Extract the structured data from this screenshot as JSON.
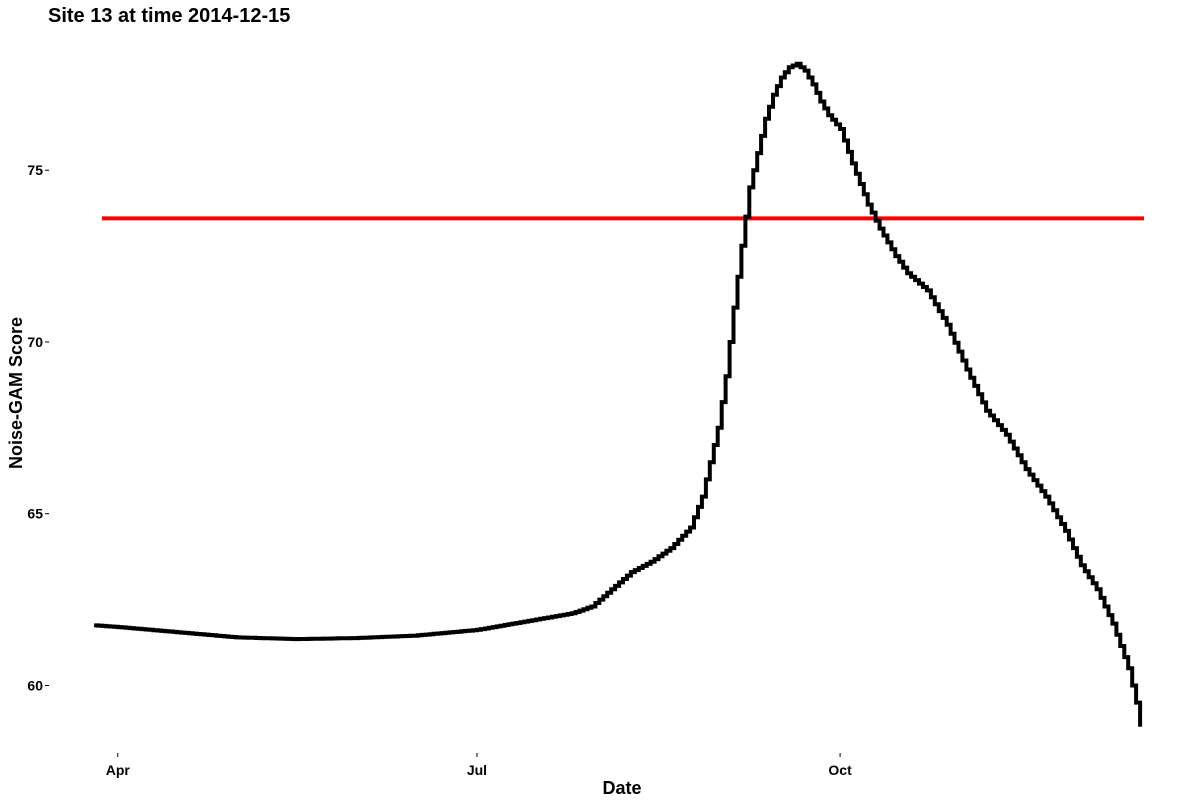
{
  "chart_data": {
    "type": "line",
    "title": "Site 13 at time 2014-12-15",
    "xlabel": "Date",
    "ylabel": "Noise-GAM Score",
    "x_ticks": [
      {
        "label": "Apr",
        "day": 0
      },
      {
        "label": "Jul",
        "day": 91
      },
      {
        "label": "Oct",
        "day": 183
      }
    ],
    "y_ticks": [
      60,
      65,
      70,
      75
    ],
    "xlim": [
      -4,
      260
    ],
    "ylim": [
      58.5,
      78.5
    ],
    "threshold": {
      "value": 73.6,
      "color": "#ff0000"
    },
    "series": [
      {
        "name": "Noise-GAM Score",
        "color": "#000000",
        "points": [
          [
            -6,
            61.75
          ],
          [
            0,
            61.7
          ],
          [
            20,
            61.5
          ],
          [
            30,
            61.4
          ],
          [
            45,
            61.35
          ],
          [
            60,
            61.38
          ],
          [
            75,
            61.45
          ],
          [
            91,
            61.62
          ],
          [
            105,
            61.9
          ],
          [
            115,
            62.1
          ],
          [
            120,
            62.3
          ],
          [
            125,
            62.8
          ],
          [
            130,
            63.3
          ],
          [
            135,
            63.6
          ],
          [
            140,
            64.0
          ],
          [
            145,
            64.6
          ],
          [
            148,
            65.5
          ],
          [
            150,
            66.5
          ],
          [
            152,
            67.5
          ],
          [
            154,
            69.0
          ],
          [
            156,
            71.0
          ],
          [
            158,
            72.8
          ],
          [
            160,
            74.5
          ],
          [
            162,
            75.5
          ],
          [
            164,
            76.5
          ],
          [
            166,
            77.2
          ],
          [
            168,
            77.7
          ],
          [
            170,
            78.0
          ],
          [
            172,
            78.1
          ],
          [
            174,
            77.9
          ],
          [
            176,
            77.5
          ],
          [
            178,
            77.0
          ],
          [
            180,
            76.6
          ],
          [
            183,
            76.2
          ],
          [
            186,
            75.2
          ],
          [
            190,
            74.0
          ],
          [
            193,
            73.3
          ],
          [
            197,
            72.5
          ],
          [
            200,
            72.0
          ],
          [
            205,
            71.5
          ],
          [
            210,
            70.5
          ],
          [
            215,
            69.2
          ],
          [
            220,
            68.0
          ],
          [
            225,
            67.3
          ],
          [
            230,
            66.3
          ],
          [
            235,
            65.5
          ],
          [
            240,
            64.5
          ],
          [
            244,
            63.5
          ],
          [
            248,
            62.8
          ],
          [
            252,
            61.8
          ],
          [
            256,
            60.5
          ],
          [
            258,
            59.5
          ],
          [
            259,
            58.8
          ]
        ]
      }
    ]
  }
}
